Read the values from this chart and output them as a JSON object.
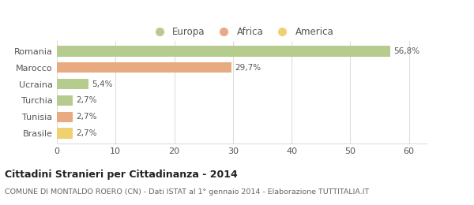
{
  "categories": [
    "Romania",
    "Marocco",
    "Ucraina",
    "Turchia",
    "Tunisia",
    "Brasile"
  ],
  "values": [
    56.8,
    29.7,
    5.4,
    2.7,
    2.7,
    2.7
  ],
  "labels": [
    "56,8%",
    "29,7%",
    "5,4%",
    "2,7%",
    "2,7%",
    "2,7%"
  ],
  "colors": [
    "#b5cc8e",
    "#e8aa80",
    "#b5cc8e",
    "#b5cc8e",
    "#e8aa80",
    "#f0d070"
  ],
  "legend": [
    {
      "label": "Europa",
      "color": "#b5cc8e"
    },
    {
      "label": "Africa",
      "color": "#e8aa80"
    },
    {
      "label": "America",
      "color": "#f0d070"
    }
  ],
  "title": "Cittadini Stranieri per Cittadinanza - 2014",
  "subtitle": "COMUNE DI MONTALDO ROERO (CN) - Dati ISTAT al 1° gennaio 2014 - Elaborazione TUTTITALIA.IT",
  "xlim": [
    0,
    63
  ],
  "xticks": [
    0,
    10,
    20,
    30,
    40,
    50,
    60
  ],
  "background_color": "#ffffff",
  "plot_bg_color": "#ffffff",
  "grid_color": "#dddddd",
  "text_color": "#555555",
  "label_color": "#555555"
}
